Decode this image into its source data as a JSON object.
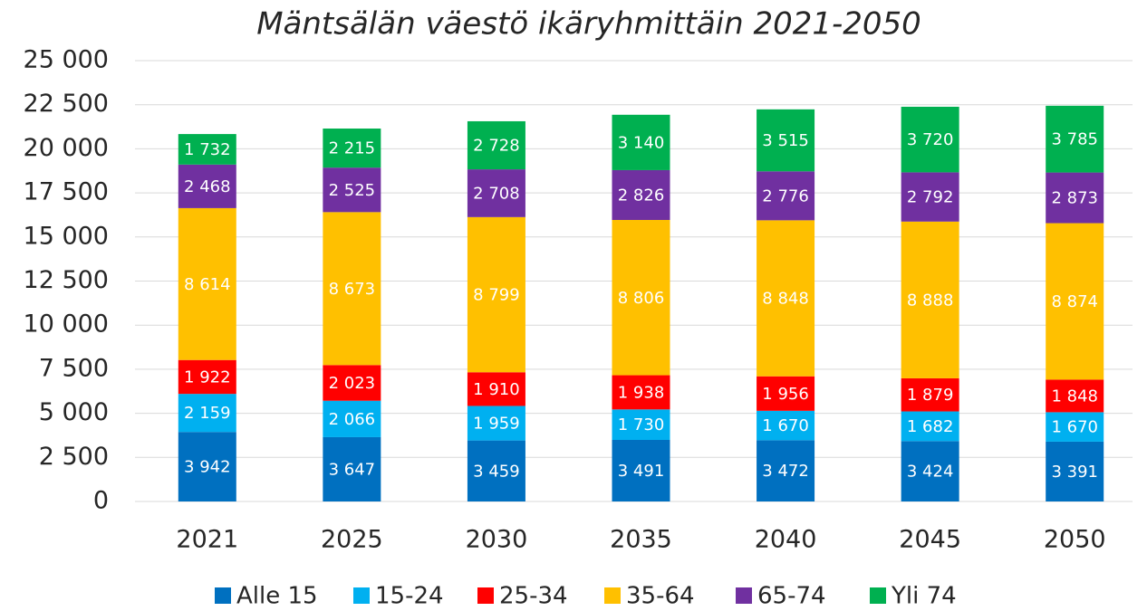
{
  "chart_data": {
    "type": "stacked_bar",
    "title": "Mäntsälän väestö ikäryhmittäin 2021-2050",
    "categories": [
      "2021",
      "2025",
      "2030",
      "2035",
      "2040",
      "2045",
      "2050"
    ],
    "series": [
      {
        "name": "Alle 15",
        "color": "#0070c0",
        "values": [
          3942,
          3647,
          3459,
          3491,
          3472,
          3424,
          3391
        ],
        "value_labels": [
          "3 942",
          "3 647",
          "3 459",
          "3 491",
          "3 472",
          "3 424",
          "3 391"
        ]
      },
      {
        "name": "15-24",
        "color": "#00b0f0",
        "values": [
          2159,
          2066,
          1959,
          1730,
          1670,
          1682,
          1670
        ],
        "value_labels": [
          "2 159",
          "2 066",
          "1 959",
          "1 730",
          "1 670",
          "1 682",
          "1 670"
        ]
      },
      {
        "name": "25-34",
        "color": "#ff0000",
        "values": [
          1922,
          2023,
          1910,
          1938,
          1956,
          1879,
          1848
        ],
        "value_labels": [
          "1 922",
          "2 023",
          "1 910",
          "1 938",
          "1 956",
          "1 879",
          "1 848"
        ]
      },
      {
        "name": "35-64",
        "color": "#ffc000",
        "values": [
          8614,
          8673,
          8799,
          8806,
          8848,
          8888,
          8874
        ],
        "value_labels": [
          "8 614",
          "8 673",
          "8 799",
          "8 806",
          "8 848",
          "8 888",
          "8 874"
        ]
      },
      {
        "name": "65-74",
        "color": "#7030a0",
        "values": [
          2468,
          2525,
          2708,
          2826,
          2776,
          2792,
          2873
        ],
        "value_labels": [
          "2 468",
          "2 525",
          "2 708",
          "2 826",
          "2 776",
          "2 792",
          "2 873"
        ]
      },
      {
        "name": "Yli 74",
        "color": "#00b050",
        "values": [
          1732,
          2215,
          2728,
          3140,
          3515,
          3720,
          3785
        ],
        "value_labels": [
          "1 732",
          "2 215",
          "2 728",
          "3 140",
          "3 515",
          "3 720",
          "3 785"
        ]
      }
    ],
    "ylim": [
      0,
      25000
    ],
    "yticks": [
      0,
      {
        "value": 2500,
        "label": "2 500"
      },
      {
        "value": 5000,
        "label": "5 000"
      },
      {
        "value": 7500,
        "label": "7 500"
      },
      {
        "value": 10000,
        "label": "10 000"
      },
      {
        "value": 12500,
        "label": "12 500"
      },
      {
        "value": 15000,
        "label": "15 000"
      },
      {
        "value": 17500,
        "label": "17 500"
      },
      {
        "value": 20000,
        "label": "20 000"
      },
      {
        "value": 22500,
        "label": "22 500"
      },
      {
        "value": 25000,
        "label": "25 000"
      }
    ],
    "grid": true,
    "legend": "bottom"
  }
}
